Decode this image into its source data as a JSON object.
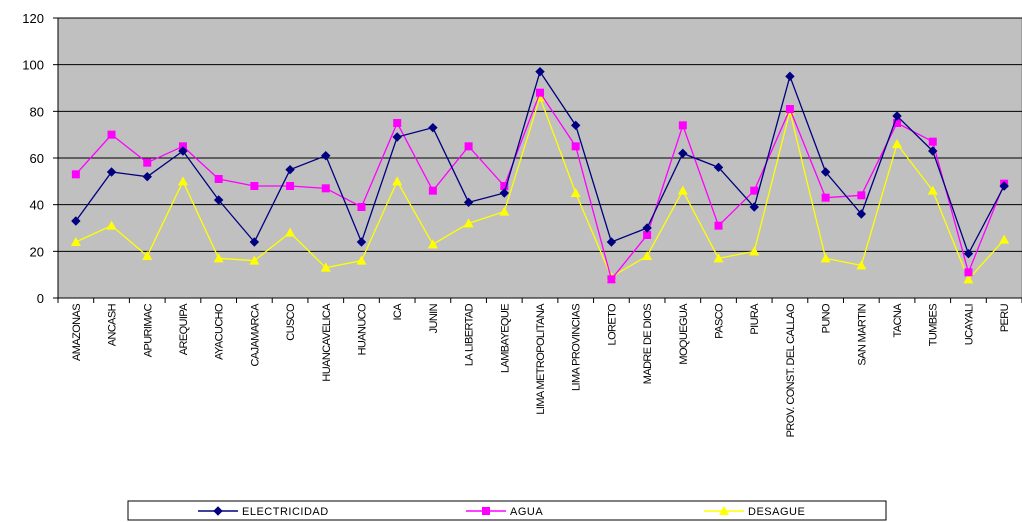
{
  "chart_data": {
    "type": "line",
    "categories": [
      "AMAZONAS",
      "ANCASH",
      "APURIMAC",
      "AREQUIPA",
      "AYACUCHO",
      "CAJAMARCA",
      "CUSCO",
      "HUANCAVELICA",
      "HUANUCO",
      "ICA",
      "JUNIN",
      "LA LIBERTAD",
      "LAMBAYEQUE",
      "LIMA METROPOLITANA",
      "LIMA PROVINCIAS",
      "LORETO",
      "MADRE DE DIOS",
      "MOQUEGUA",
      "PASCO",
      "PIURA",
      "PROV. CONST. DEL CALLAO",
      "PUNO",
      "SAN MARTIN",
      "TACNA",
      "TUMBES",
      "UCAYALI",
      "PERU"
    ],
    "series": [
      {
        "name": "ELECTRICIDAD",
        "color": "#000080",
        "marker": "diamond",
        "values": [
          33,
          54,
          52,
          63,
          42,
          24,
          55,
          61,
          24,
          69,
          73,
          41,
          45,
          97,
          74,
          24,
          30,
          62,
          56,
          39,
          95,
          54,
          36,
          78,
          63,
          19,
          48
        ]
      },
      {
        "name": "AGUA",
        "color": "#FF00FF",
        "marker": "square",
        "values": [
          53,
          70,
          58,
          65,
          51,
          48,
          48,
          47,
          39,
          75,
          46,
          65,
          48,
          88,
          65,
          8,
          27,
          74,
          31,
          46,
          81,
          43,
          44,
          75,
          67,
          11,
          49
        ]
      },
      {
        "name": "DESAGUE",
        "color": "#FFFF00",
        "marker": "triangle",
        "values": [
          24,
          31,
          18,
          50,
          17,
          16,
          28,
          13,
          16,
          50,
          23,
          32,
          37,
          86,
          45,
          9,
          18,
          46,
          17,
          20,
          80,
          17,
          14,
          66,
          46,
          8,
          25
        ]
      }
    ],
    "ylim": [
      0,
      120
    ],
    "yticks": [
      0,
      20,
      40,
      60,
      80,
      100,
      120
    ],
    "grid": true,
    "plot_background": "#C0C0C0",
    "legend_position": "bottom"
  }
}
